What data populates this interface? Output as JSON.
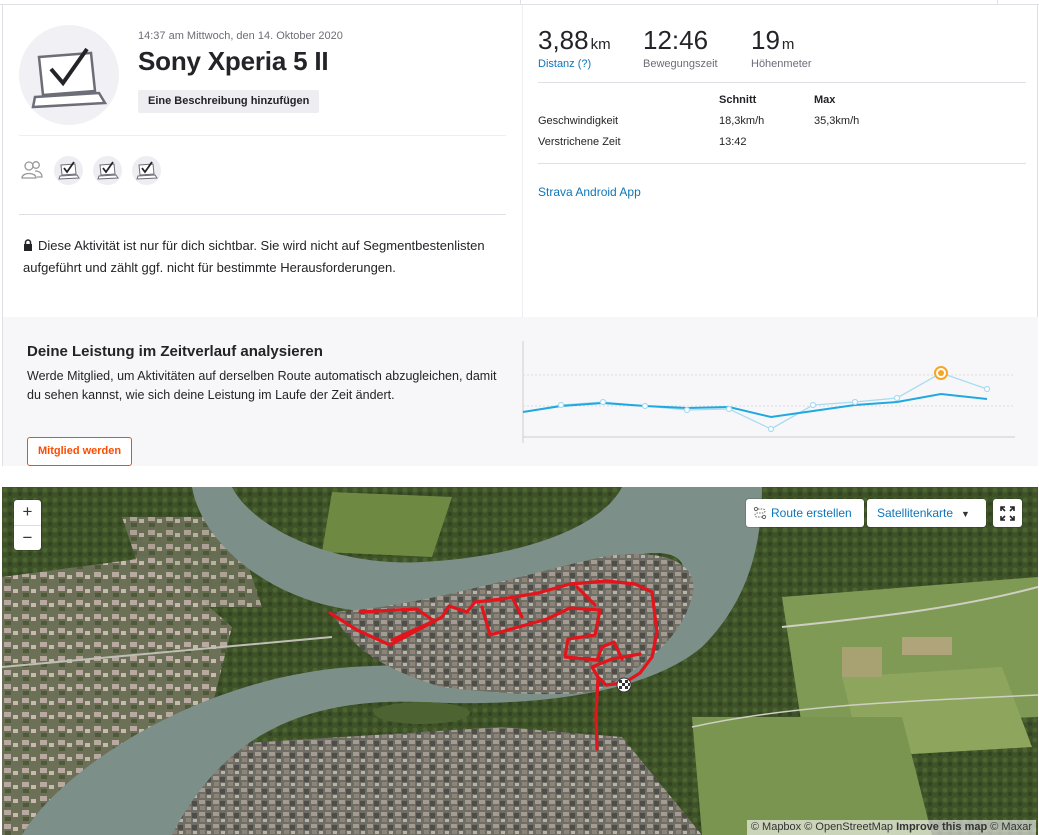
{
  "activity": {
    "datetime": "14:37 am Mittwoch, den 14. Oktober 2020",
    "title": "Sony Xperia 5 II",
    "add_description": "Eine Beschreibung hinzufügen",
    "privacy_text": "Diese Aktivität ist nur für dich sichtbar. Sie wird nicht auf Segmentbestenlisten aufgeführt und zählt ggf. nicht für bestimmte Herausforderungen."
  },
  "stats": {
    "distance": {
      "value": "3,88",
      "unit": "km",
      "label": "Distanz (?)"
    },
    "moving_time": {
      "value": "12:46",
      "label": "Bewegungszeit"
    },
    "elevation": {
      "value": "19",
      "unit": "m",
      "label": "Höhenmeter"
    }
  },
  "table": {
    "headers": [
      "",
      "Schnitt",
      "Max"
    ],
    "rows": [
      [
        "Geschwindigkeit",
        "18,3km/h",
        "35,3km/h"
      ],
      [
        "Verstrichene Zeit",
        "13:42",
        ""
      ]
    ]
  },
  "device_link": "Strava Android App",
  "upsell": {
    "heading": "Deine Leistung im Zeitverlauf analysieren",
    "text": "Werde Mitglied, um Aktivitäten auf derselben Route automatisch abzugleichen, damit du sehen kannst, wie sich deine Leistung im Laufe der Zeit ändert.",
    "button": "Mitglied werden"
  },
  "map": {
    "zoom_in": "+",
    "zoom_out": "−",
    "route_button": "Route erstellen",
    "map_type": "Satellitenkarte",
    "attribution": {
      "mapbox": "© Mapbox",
      "osm": "© OpenStreetMap",
      "improve": "Improve this map",
      "maxar": "© Maxar"
    }
  },
  "colors": {
    "brand": "#fc4c02",
    "link": "#0d76ba",
    "route": "#e3141b",
    "trend": "#1fa9e0"
  },
  "icons": {
    "kudos": "group-icon",
    "lock": "lock-icon",
    "expand": "fullscreen-icon",
    "route": "route-builder-icon"
  }
}
